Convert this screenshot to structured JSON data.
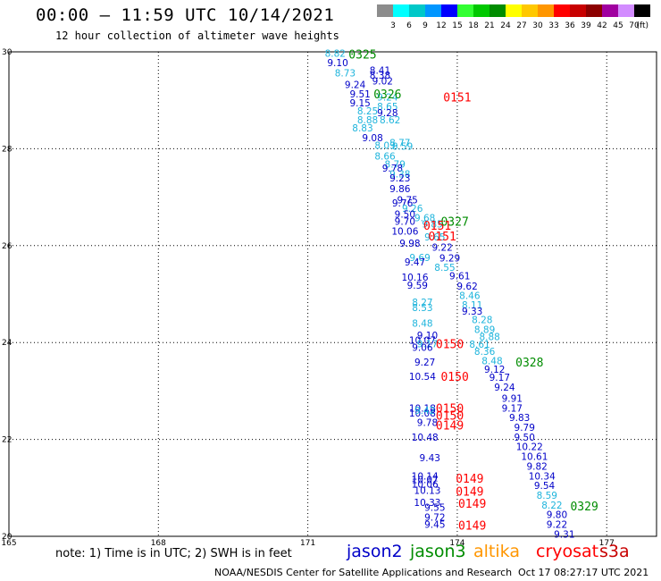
{
  "header": {
    "title": "00:00 – 11:59 UTC 10/14/2021",
    "subtitle": "12 hour collection of altimeter wave heights"
  },
  "legend": {
    "unit": "(ft)",
    "bins": [
      {
        "label": "",
        "color": "#8c8c8c"
      },
      {
        "label": "3",
        "color": "#00ffff"
      },
      {
        "label": "6",
        "color": "#00c8c8"
      },
      {
        "label": "9",
        "color": "#0096ff"
      },
      {
        "label": "12",
        "color": "#0000ff"
      },
      {
        "label": "15",
        "color": "#32ff32"
      },
      {
        "label": "18",
        "color": "#00c800"
      },
      {
        "label": "21",
        "color": "#008c00"
      },
      {
        "label": "24",
        "color": "#ffff00"
      },
      {
        "label": "27",
        "color": "#ffc800"
      },
      {
        "label": "30",
        "color": "#ff9600"
      },
      {
        "label": "33",
        "color": "#ff0000"
      },
      {
        "label": "36",
        "color": "#c80000"
      },
      {
        "label": "39",
        "color": "#8c0000"
      },
      {
        "label": "42",
        "color": "#a000a0"
      },
      {
        "label": "45",
        "color": "#d28cff"
      },
      {
        "label": "70",
        "color": "#000000"
      }
    ]
  },
  "map": {
    "lon_ticks": [
      "165",
      "168",
      "171",
      "174",
      "177"
    ],
    "lat_ticks": [
      "30",
      "28",
      "26",
      "24",
      "22",
      "20"
    ],
    "lon_range": [
      165,
      178
    ],
    "lat_range": [
      20,
      30
    ],
    "colors": {
      "jason2": "#0000c8",
      "jason3": "#008c00",
      "altika": "#ff9600",
      "cryosat": "#ff0000",
      "s3a": "#c80000",
      "light": "#1eb4dc"
    },
    "heights": [
      {
        "lon": 171.55,
        "lat": 29.97,
        "text": "8.82",
        "c": "light"
      },
      {
        "lon": 171.6,
        "lat": 29.78,
        "text": "9.10",
        "c": "jason2"
      },
      {
        "lon": 171.75,
        "lat": 29.57,
        "text": "8.73",
        "c": "light"
      },
      {
        "lon": 172.45,
        "lat": 29.62,
        "text": "8.41",
        "c": "jason2"
      },
      {
        "lon": 172.45,
        "lat": 29.52,
        "text": "8.38",
        "c": "jason2"
      },
      {
        "lon": 172.5,
        "lat": 29.4,
        "text": "9.02",
        "c": "jason2"
      },
      {
        "lon": 171.95,
        "lat": 29.33,
        "text": "9.24",
        "c": "jason2"
      },
      {
        "lon": 172.05,
        "lat": 29.13,
        "text": "9.51",
        "c": "jason2"
      },
      {
        "lon": 172.6,
        "lat": 29.07,
        "text": "9.24",
        "c": "light"
      },
      {
        "lon": 172.05,
        "lat": 28.95,
        "text": "9.15",
        "c": "jason2"
      },
      {
        "lon": 172.6,
        "lat": 28.87,
        "text": "8.65",
        "c": "light"
      },
      {
        "lon": 172.2,
        "lat": 28.78,
        "text": "8.25",
        "c": "light"
      },
      {
        "lon": 172.6,
        "lat": 28.75,
        "text": "9.28",
        "c": "jason2"
      },
      {
        "lon": 172.2,
        "lat": 28.6,
        "text": "8.88",
        "c": "light"
      },
      {
        "lon": 172.65,
        "lat": 28.6,
        "text": "8.62",
        "c": "light"
      },
      {
        "lon": 172.1,
        "lat": 28.43,
        "text": "8.83",
        "c": "light"
      },
      {
        "lon": 172.3,
        "lat": 28.23,
        "text": "9.08",
        "c": "jason2"
      },
      {
        "lon": 172.85,
        "lat": 28.13,
        "text": "8.77",
        "c": "light"
      },
      {
        "lon": 172.55,
        "lat": 28.07,
        "text": "8.03",
        "c": "light"
      },
      {
        "lon": 172.9,
        "lat": 28.05,
        "text": "8.59",
        "c": "light"
      },
      {
        "lon": 172.55,
        "lat": 27.85,
        "text": "8.66",
        "c": "light"
      },
      {
        "lon": 172.75,
        "lat": 27.68,
        "text": "8.79",
        "c": "light"
      },
      {
        "lon": 172.7,
        "lat": 27.6,
        "text": "9.78",
        "c": "jason2"
      },
      {
        "lon": 172.85,
        "lat": 27.48,
        "text": "9.38",
        "c": "light"
      },
      {
        "lon": 172.85,
        "lat": 27.4,
        "text": "9.23",
        "c": "jason2"
      },
      {
        "lon": 172.85,
        "lat": 27.18,
        "text": "9.86",
        "c": "jason2"
      },
      {
        "lon": 173.0,
        "lat": 26.95,
        "text": "9.75",
        "c": "jason2"
      },
      {
        "lon": 172.9,
        "lat": 26.88,
        "text": "9.76",
        "c": "jason2"
      },
      {
        "lon": 173.1,
        "lat": 26.77,
        "text": "9.26",
        "c": "light"
      },
      {
        "lon": 172.95,
        "lat": 26.65,
        "text": "9.50",
        "c": "jason2"
      },
      {
        "lon": 173.35,
        "lat": 26.58,
        "text": "9.68",
        "c": "light"
      },
      {
        "lon": 172.95,
        "lat": 26.5,
        "text": "9.70",
        "c": "jason2"
      },
      {
        "lon": 173.5,
        "lat": 26.45,
        "text": "9.85",
        "c": "light"
      },
      {
        "lon": 172.95,
        "lat": 26.3,
        "text": "10.06",
        "c": "jason2"
      },
      {
        "lon": 173.55,
        "lat": 26.18,
        "text": "9.65",
        "c": "light"
      },
      {
        "lon": 173.05,
        "lat": 26.05,
        "text": "9.98",
        "c": "jason2"
      },
      {
        "lon": 173.7,
        "lat": 25.97,
        "text": "9.22",
        "c": "jason2"
      },
      {
        "lon": 173.25,
        "lat": 25.76,
        "text": "9.69",
        "c": "light"
      },
      {
        "lon": 173.15,
        "lat": 25.66,
        "text": "9.47",
        "c": "jason2"
      },
      {
        "lon": 173.85,
        "lat": 25.75,
        "text": "9.29",
        "c": "jason2"
      },
      {
        "lon": 173.75,
        "lat": 25.55,
        "text": "8.55",
        "c": "light"
      },
      {
        "lon": 173.15,
        "lat": 25.35,
        "text": "10.16",
        "c": "jason2"
      },
      {
        "lon": 174.05,
        "lat": 25.38,
        "text": "9.61",
        "c": "jason2"
      },
      {
        "lon": 173.2,
        "lat": 25.18,
        "text": "9.59",
        "c": "jason2"
      },
      {
        "lon": 174.2,
        "lat": 25.17,
        "text": "9.62",
        "c": "jason2"
      },
      {
        "lon": 174.25,
        "lat": 24.97,
        "text": "8.46",
        "c": "light"
      },
      {
        "lon": 173.3,
        "lat": 24.83,
        "text": "8.27",
        "c": "light"
      },
      {
        "lon": 174.3,
        "lat": 24.78,
        "text": "8.11",
        "c": "light"
      },
      {
        "lon": 173.3,
        "lat": 24.72,
        "text": "8.53",
        "c": "light"
      },
      {
        "lon": 174.3,
        "lat": 24.65,
        "text": "9.33",
        "c": "jason2"
      },
      {
        "lon": 174.5,
        "lat": 24.47,
        "text": "8.28",
        "c": "light"
      },
      {
        "lon": 173.3,
        "lat": 24.4,
        "text": "8.48",
        "c": "light"
      },
      {
        "lon": 174.55,
        "lat": 24.27,
        "text": "8.89",
        "c": "light"
      },
      {
        "lon": 173.4,
        "lat": 24.15,
        "text": "9.10",
        "c": "jason2"
      },
      {
        "lon": 174.65,
        "lat": 24.12,
        "text": "8.88",
        "c": "light"
      },
      {
        "lon": 173.3,
        "lat": 24.05,
        "text": "10.07",
        "c": "jason2"
      },
      {
        "lon": 173.4,
        "lat": 23.98,
        "text": "9.17",
        "c": "light"
      },
      {
        "lon": 174.45,
        "lat": 23.97,
        "text": "8.61",
        "c": "light"
      },
      {
        "lon": 173.3,
        "lat": 23.9,
        "text": "9.06",
        "c": "jason2"
      },
      {
        "lon": 174.55,
        "lat": 23.82,
        "text": "8.36",
        "c": "light"
      },
      {
        "lon": 174.7,
        "lat": 23.63,
        "text": "8.48",
        "c": "light"
      },
      {
        "lon": 173.35,
        "lat": 23.6,
        "text": "9.27",
        "c": "jason2"
      },
      {
        "lon": 174.75,
        "lat": 23.45,
        "text": "9.12",
        "c": "jason2"
      },
      {
        "lon": 174.85,
        "lat": 23.28,
        "text": "9.17",
        "c": "jason2"
      },
      {
        "lon": 173.3,
        "lat": 23.3,
        "text": "10.54",
        "c": "jason2"
      },
      {
        "lon": 174.95,
        "lat": 23.08,
        "text": "9.24",
        "c": "jason2"
      },
      {
        "lon": 175.1,
        "lat": 22.85,
        "text": "9.91",
        "c": "jason2"
      },
      {
        "lon": 173.3,
        "lat": 22.65,
        "text": "10.18",
        "c": "jason2"
      },
      {
        "lon": 175.1,
        "lat": 22.65,
        "text": "9.17",
        "c": "jason2"
      },
      {
        "lon": 173.3,
        "lat": 22.55,
        "text": "10.08",
        "c": "jason2"
      },
      {
        "lon": 173.35,
        "lat": 22.6,
        "text": "9.42",
        "c": "light"
      },
      {
        "lon": 175.25,
        "lat": 22.45,
        "text": "9.83",
        "c": "jason2"
      },
      {
        "lon": 173.4,
        "lat": 22.35,
        "text": "9.78",
        "c": "jason2"
      },
      {
        "lon": 175.35,
        "lat": 22.25,
        "text": "9.79",
        "c": "jason2"
      },
      {
        "lon": 175.35,
        "lat": 22.05,
        "text": "9.50",
        "c": "jason2"
      },
      {
        "lon": 173.35,
        "lat": 22.05,
        "text": "10.48",
        "c": "jason2"
      },
      {
        "lon": 175.45,
        "lat": 21.85,
        "text": "10.22",
        "c": "jason2"
      },
      {
        "lon": 175.55,
        "lat": 21.65,
        "text": "10.61",
        "c": "jason2"
      },
      {
        "lon": 173.45,
        "lat": 21.62,
        "text": "9.43",
        "c": "jason2"
      },
      {
        "lon": 175.6,
        "lat": 21.45,
        "text": "9.82",
        "c": "jason2"
      },
      {
        "lon": 175.7,
        "lat": 21.25,
        "text": "10.34",
        "c": "jason2"
      },
      {
        "lon": 173.35,
        "lat": 21.25,
        "text": "10.14",
        "c": "jason2"
      },
      {
        "lon": 173.35,
        "lat": 21.17,
        "text": "10.07",
        "c": "jason2"
      },
      {
        "lon": 173.35,
        "lat": 21.08,
        "text": "10.06",
        "c": "jason2"
      },
      {
        "lon": 175.75,
        "lat": 21.05,
        "text": "9.54",
        "c": "jason2"
      },
      {
        "lon": 173.4,
        "lat": 20.95,
        "text": "10.13",
        "c": "jason2"
      },
      {
        "lon": 175.8,
        "lat": 20.85,
        "text": "8.59",
        "c": "light"
      },
      {
        "lon": 173.4,
        "lat": 20.7,
        "text": "10.33",
        "c": "jason2"
      },
      {
        "lon": 175.9,
        "lat": 20.65,
        "text": "8.22",
        "c": "light"
      },
      {
        "lon": 173.55,
        "lat": 20.6,
        "text": "9.55",
        "c": "jason2"
      },
      {
        "lon": 176.0,
        "lat": 20.45,
        "text": "9.80",
        "c": "jason2"
      },
      {
        "lon": 173.55,
        "lat": 20.4,
        "text": "9.72",
        "c": "jason2"
      },
      {
        "lon": 176.0,
        "lat": 20.25,
        "text": "9.22",
        "c": "jason2"
      },
      {
        "lon": 173.55,
        "lat": 20.25,
        "text": "9.45",
        "c": "jason2"
      },
      {
        "lon": 176.15,
        "lat": 20.05,
        "text": "9.31",
        "c": "jason2"
      }
    ],
    "passes": [
      {
        "lon": 172.1,
        "lat": 29.95,
        "text": "0325",
        "c": "jason3"
      },
      {
        "lon": 172.6,
        "lat": 29.13,
        "text": "0326",
        "c": "jason3"
      },
      {
        "lon": 174.0,
        "lat": 29.07,
        "text": "0151",
        "c": "cryosat"
      },
      {
        "lon": 173.95,
        "lat": 26.5,
        "text": "0327",
        "c": "jason3"
      },
      {
        "lon": 173.6,
        "lat": 26.42,
        "text": "0151",
        "c": "cryosat"
      },
      {
        "lon": 173.7,
        "lat": 26.2,
        "text": "0151",
        "c": "cryosat"
      },
      {
        "lon": 173.85,
        "lat": 23.98,
        "text": "0150",
        "c": "cryosat"
      },
      {
        "lon": 175.45,
        "lat": 23.6,
        "text": "0328",
        "c": "jason3"
      },
      {
        "lon": 173.95,
        "lat": 23.3,
        "text": "0150",
        "c": "cryosat"
      },
      {
        "lon": 173.85,
        "lat": 22.65,
        "text": "0150",
        "c": "cryosat"
      },
      {
        "lon": 173.85,
        "lat": 22.5,
        "text": "0150",
        "c": "cryosat"
      },
      {
        "lon": 173.85,
        "lat": 22.3,
        "text": "0149",
        "c": "cryosat"
      },
      {
        "lon": 174.25,
        "lat": 21.2,
        "text": "0149",
        "c": "cryosat"
      },
      {
        "lon": 174.25,
        "lat": 20.93,
        "text": "0149",
        "c": "cryosat"
      },
      {
        "lon": 174.3,
        "lat": 20.68,
        "text": "0149",
        "c": "cryosat"
      },
      {
        "lon": 176.55,
        "lat": 20.63,
        "text": "0329",
        "c": "jason3"
      },
      {
        "lon": 174.3,
        "lat": 20.23,
        "text": "0149",
        "c": "cryosat"
      }
    ]
  },
  "footer": {
    "note": "note:  1) Time is in UTC; 2) SWH is in feet",
    "satellites": {
      "jason2": "jason2",
      "jason3": "jason3",
      "altika": "altika",
      "cryosat": "cryosat",
      "s3a": "s3a"
    },
    "source": "NOAA/NESDIS Center for Satellite Applications and Research",
    "timestamp": "Oct 17 08:27:17 UTC 2021"
  }
}
